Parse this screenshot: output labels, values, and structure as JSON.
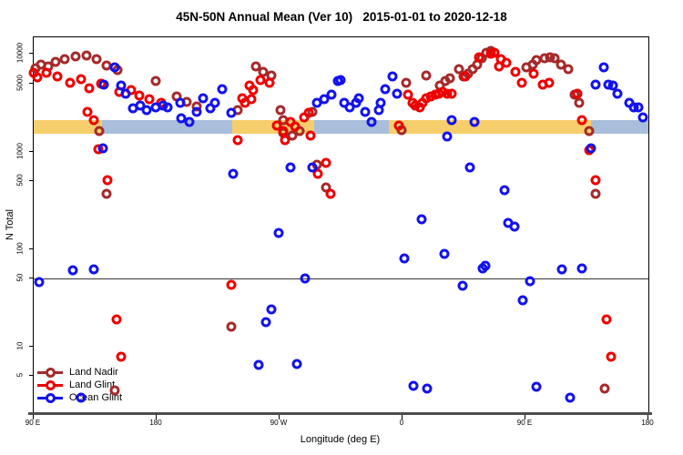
{
  "title": "45N-50N Annual Mean (Ver 10)   2015-01-01 to 2020-12-18",
  "chart_data": {
    "type": "scatter",
    "xlabel": "Longitude (deg E)",
    "ylabel": "N Total",
    "x_axis": {
      "range_t": [
        0,
        450
      ],
      "ticks_t": [
        0,
        90,
        180,
        270,
        360,
        450
      ],
      "tick_labels": [
        "90 E",
        "180",
        "90 W",
        "0",
        "90 E",
        "180"
      ],
      "note": "axis wraps eastward from 90E around the globe to 180 (450 deg span)"
    },
    "y_axis": {
      "scale": "log",
      "range": [
        2,
        14800
      ],
      "ticks": [
        10000,
        5000,
        1000,
        500,
        100,
        50,
        10,
        5
      ]
    },
    "reference_line_value": 50,
    "surface_band": {
      "top_value": 2090,
      "bottom_value": 1510,
      "colors": {
        "land": "#F6CE6C",
        "ocean": "#A9BEDA"
      },
      "segments": [
        {
          "t0": 0,
          "t1": 50,
          "surface": "land"
        },
        {
          "t0": 50,
          "t1": 145,
          "surface": "ocean"
        },
        {
          "t0": 145,
          "t1": 205,
          "surface": "land"
        },
        {
          "t0": 205,
          "t1": 260,
          "surface": "ocean"
        },
        {
          "t0": 260,
          "t1": 408,
          "surface": "land"
        },
        {
          "t0": 408,
          "t1": 450,
          "surface": "ocean"
        }
      ]
    },
    "series": [
      {
        "name": "Land Nadir",
        "color": "#A52A2A",
        "points": [
          [
            1.3,
            7080
          ],
          [
            5.3,
            7720
          ],
          [
            10.7,
            7390
          ],
          [
            16,
            8230
          ],
          [
            22.7,
            8780
          ],
          [
            30.7,
            9370
          ],
          [
            38.7,
            9580
          ],
          [
            46,
            8780
          ],
          [
            53.3,
            7560
          ],
          [
            61.3,
            6790
          ],
          [
            89.3,
            5240
          ],
          [
            104.7,
            3650
          ],
          [
            112,
            3200
          ],
          [
            119.3,
            2880
          ],
          [
            48,
            1610
          ],
          [
            53.3,
            365
          ],
          [
            59.3,
            3.6
          ],
          [
            144.7,
            16
          ],
          [
            149.3,
            2640
          ],
          [
            162.7,
            7390
          ],
          [
            168,
            6500
          ],
          [
            174,
            5970
          ],
          [
            180.7,
            2640
          ],
          [
            182.7,
            2120
          ],
          [
            182.7,
            1540
          ],
          [
            189.3,
            1470
          ],
          [
            194.7,
            1610
          ],
          [
            204,
            2530
          ],
          [
            207.3,
            730
          ],
          [
            214,
            425
          ],
          [
            269.3,
            1640
          ],
          [
            272.7,
            5020
          ],
          [
            287.3,
            5970
          ],
          [
            297.3,
            4710
          ],
          [
            301.3,
            5240
          ],
          [
            304.7,
            5590
          ],
          [
            311.3,
            6930
          ],
          [
            314.7,
            5840
          ],
          [
            318,
            6230
          ],
          [
            321.3,
            6930
          ],
          [
            324.7,
            7720
          ],
          [
            328,
            8970
          ],
          [
            331.3,
            10300
          ],
          [
            334.7,
            10700
          ],
          [
            360.7,
            7240
          ],
          [
            365.3,
            7720
          ],
          [
            368,
            8590
          ],
          [
            374,
            8970
          ],
          [
            378,
            9170
          ],
          [
            381.3,
            8970
          ],
          [
            386,
            7720
          ],
          [
            391.3,
            6930
          ],
          [
            396,
            3800
          ],
          [
            399.3,
            3140
          ],
          [
            406.7,
            1610
          ],
          [
            411.3,
            365
          ],
          [
            418,
            3.7
          ]
        ]
      },
      {
        "name": "Land Glint",
        "color": "#EE0000",
        "points": [
          [
            0,
            6360
          ],
          [
            2.7,
            5710
          ],
          [
            9.3,
            6360
          ],
          [
            17.3,
            5840
          ],
          [
            26.7,
            5020
          ],
          [
            34.7,
            5470
          ],
          [
            40.7,
            4420
          ],
          [
            49.3,
            4920
          ],
          [
            62.7,
            4060
          ],
          [
            71.3,
            4230
          ],
          [
            77.3,
            3730
          ],
          [
            84.7,
            3420
          ],
          [
            93.3,
            3140
          ],
          [
            39.3,
            2530
          ],
          [
            44,
            2120
          ],
          [
            47.3,
            1060
          ],
          [
            54,
            505
          ],
          [
            60.7,
            19
          ],
          [
            64,
            7.9
          ],
          [
            144.7,
            43
          ],
          [
            149.3,
            1320
          ],
          [
            152.7,
            3490
          ],
          [
            154.7,
            3140
          ],
          [
            158,
            4710
          ],
          [
            159.3,
            3420
          ],
          [
            160.7,
            4230
          ],
          [
            166,
            5360
          ],
          [
            172.7,
            5020
          ],
          [
            178,
            1830
          ],
          [
            182.7,
            1610
          ],
          [
            184,
            1320
          ],
          [
            188,
            2030
          ],
          [
            191.3,
            1790
          ],
          [
            198,
            2260
          ],
          [
            201.3,
            2470
          ],
          [
            202.7,
            1470
          ],
          [
            208,
            585
          ],
          [
            214,
            760
          ],
          [
            217.3,
            365
          ],
          [
            267.3,
            1830
          ],
          [
            274,
            3800
          ],
          [
            277.3,
            3140
          ],
          [
            279.3,
            2940
          ],
          [
            282.7,
            2820
          ],
          [
            284.7,
            3140
          ],
          [
            287.3,
            3490
          ],
          [
            290.7,
            3650
          ],
          [
            294,
            3800
          ],
          [
            296.7,
            3890
          ],
          [
            299.3,
            4060
          ],
          [
            302.7,
            3890
          ],
          [
            306,
            3890
          ],
          [
            316,
            5840
          ],
          [
            326,
            9170
          ],
          [
            334.7,
            10000
          ],
          [
            337.3,
            10300
          ],
          [
            340.7,
            7390
          ],
          [
            342,
            8780
          ],
          [
            346,
            8060
          ],
          [
            352.7,
            6500
          ],
          [
            357.3,
            5020
          ],
          [
            366,
            6230
          ],
          [
            372.7,
            4810
          ],
          [
            377.3,
            5020
          ],
          [
            398,
            3890
          ],
          [
            401.3,
            2120
          ],
          [
            406.7,
            1040
          ],
          [
            411.3,
            505
          ],
          [
            419.3,
            19
          ],
          [
            422.7,
            7.9
          ]
        ]
      },
      {
        "name": "Ocean Glint",
        "color": "#1212EE",
        "points": [
          [
            4,
            46
          ],
          [
            28.7,
            61
          ],
          [
            34.7,
            3.0
          ],
          [
            44,
            62
          ],
          [
            50.7,
            1080
          ],
          [
            51.3,
            4810
          ],
          [
            59.3,
            7240
          ],
          [
            64,
            4710
          ],
          [
            67.3,
            3890
          ],
          [
            72.7,
            2760
          ],
          [
            78,
            2940
          ],
          [
            82.7,
            2640
          ],
          [
            89.3,
            2820
          ],
          [
            94.7,
            2940
          ],
          [
            98,
            2820
          ],
          [
            107.3,
            3140
          ],
          [
            108,
            2210
          ],
          [
            114,
            1990
          ],
          [
            119.3,
            2530
          ],
          [
            124,
            3490
          ],
          [
            129.3,
            2760
          ],
          [
            132.7,
            3140
          ],
          [
            138,
            4320
          ],
          [
            144.7,
            2470
          ],
          [
            146,
            585
          ],
          [
            164.7,
            6.5
          ],
          [
            170,
            18
          ],
          [
            174,
            24
          ],
          [
            179.3,
            145
          ],
          [
            188,
            680
          ],
          [
            192.7,
            6.6
          ],
          [
            198.7,
            50
          ],
          [
            204,
            680
          ],
          [
            207.3,
            3140
          ],
          [
            212.7,
            3420
          ],
          [
            218,
            3800
          ],
          [
            222.7,
            5240
          ],
          [
            224.7,
            5360
          ],
          [
            227.3,
            3140
          ],
          [
            231.3,
            2820
          ],
          [
            236,
            3140
          ],
          [
            238,
            3490
          ],
          [
            242.7,
            2530
          ],
          [
            247.3,
            1990
          ],
          [
            252.7,
            2640
          ],
          [
            254,
            3140
          ],
          [
            257.3,
            4320
          ],
          [
            262.7,
            5840
          ],
          [
            266,
            3890
          ],
          [
            271.3,
            81
          ],
          [
            278,
            4.0
          ],
          [
            284,
            200
          ],
          [
            288,
            3.7
          ],
          [
            300.7,
            89
          ],
          [
            302.7,
            1440
          ],
          [
            306,
            2120
          ],
          [
            314,
            42
          ],
          [
            319.3,
            680
          ],
          [
            322.7,
            2030
          ],
          [
            328.7,
            63
          ],
          [
            330.7,
            68
          ],
          [
            344.7,
            405
          ],
          [
            347.3,
            185
          ],
          [
            352,
            170
          ],
          [
            358,
            30
          ],
          [
            363.3,
            47
          ],
          [
            368,
            3.9
          ],
          [
            386.7,
            62
          ],
          [
            392.7,
            3.0
          ],
          [
            401.3,
            63
          ],
          [
            408,
            1080
          ],
          [
            411.3,
            4810
          ],
          [
            417.3,
            7240
          ],
          [
            420.7,
            4810
          ],
          [
            424,
            4710
          ],
          [
            427.3,
            3890
          ],
          [
            436,
            3140
          ],
          [
            439.3,
            2820
          ],
          [
            442.7,
            2820
          ],
          [
            446,
            2260
          ]
        ]
      }
    ],
    "legend": {
      "position": "bottom-left",
      "entries": [
        "Land Nadir",
        "Land Glint",
        "Ocean Glint"
      ]
    }
  }
}
